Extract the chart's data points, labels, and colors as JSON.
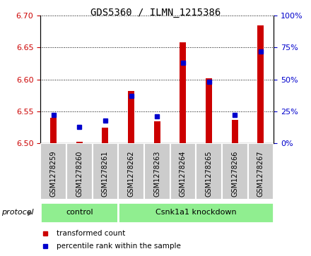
{
  "title": "GDS5360 / ILMN_1215386",
  "samples": [
    "GSM1278259",
    "GSM1278260",
    "GSM1278261",
    "GSM1278262",
    "GSM1278263",
    "GSM1278264",
    "GSM1278265",
    "GSM1278266",
    "GSM1278267"
  ],
  "transformed_count": [
    6.54,
    6.502,
    6.525,
    6.582,
    6.535,
    6.658,
    6.602,
    6.537,
    6.684
  ],
  "percentile_rank": [
    22,
    13,
    18,
    37,
    21,
    63,
    48,
    22,
    72
  ],
  "ylim_left": [
    6.5,
    6.7
  ],
  "ylim_right": [
    0,
    100
  ],
  "yticks_left": [
    6.5,
    6.55,
    6.6,
    6.65,
    6.7
  ],
  "yticks_right": [
    0,
    25,
    50,
    75,
    100
  ],
  "bar_color": "#cc0000",
  "marker_color": "#0000cc",
  "bar_baseline": 6.5,
  "groups": [
    {
      "label": "control",
      "start": 0,
      "end": 3
    },
    {
      "label": "Csnk1a1 knockdown",
      "start": 3,
      "end": 9
    }
  ],
  "group_color": "#90ee90",
  "protocol_label": "protocol",
  "legend_items": [
    {
      "label": "transformed count",
      "color": "#cc0000"
    },
    {
      "label": "percentile rank within the sample",
      "color": "#0000cc"
    }
  ],
  "plot_bg": "#ffffff",
  "xtick_bg": "#cccccc",
  "bar_width": 0.25,
  "title_fontsize": 10,
  "tick_fontsize": 8,
  "sample_fontsize": 7
}
